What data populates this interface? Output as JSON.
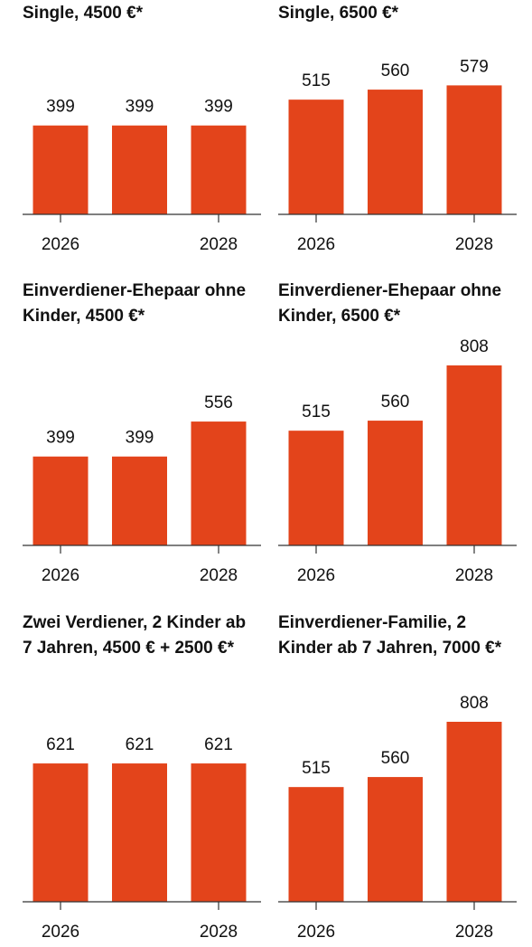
{
  "chart_data": [
    {
      "type": "bar",
      "title": "Single, 4500 €*",
      "categories": [
        "2026",
        null,
        "2028"
      ],
      "values": [
        399,
        399,
        399
      ],
      "color": "#e3441b",
      "ylim": [
        0,
        808
      ]
    },
    {
      "type": "bar",
      "title": "Single, 6500 €*",
      "categories": [
        "2026",
        null,
        "2028"
      ],
      "values": [
        515,
        560,
        579
      ],
      "color": "#e3441b",
      "ylim": [
        0,
        808
      ]
    },
    {
      "type": "bar",
      "title": "Einverdiener-Ehepaar ohne Kinder, 4500 €*",
      "categories": [
        "2026",
        null,
        "2028"
      ],
      "values": [
        399,
        399,
        556
      ],
      "color": "#e3441b",
      "ylim": [
        0,
        808
      ]
    },
    {
      "type": "bar",
      "title": "Einverdiener-Ehepaar ohne Kinder, 6500 €*",
      "categories": [
        "2026",
        null,
        "2028"
      ],
      "values": [
        515,
        560,
        808
      ],
      "color": "#e3441b",
      "ylim": [
        0,
        808
      ]
    },
    {
      "type": "bar",
      "title": "Zwei Verdiener, 2 Kinder ab 7 Jahren, 4500 € + 2500 €*",
      "categories": [
        "2026",
        null,
        "2028"
      ],
      "values": [
        621,
        621,
        621
      ],
      "color": "#e3441b",
      "ylim": [
        0,
        808
      ]
    },
    {
      "type": "bar",
      "title": "Einverdiener-Familie, 2 Kinder ab 7 Jahren, 7000 €*",
      "categories": [
        "2026",
        null,
        "2028"
      ],
      "values": [
        515,
        560,
        808
      ],
      "color": "#e3441b",
      "ylim": [
        0,
        808
      ]
    }
  ]
}
